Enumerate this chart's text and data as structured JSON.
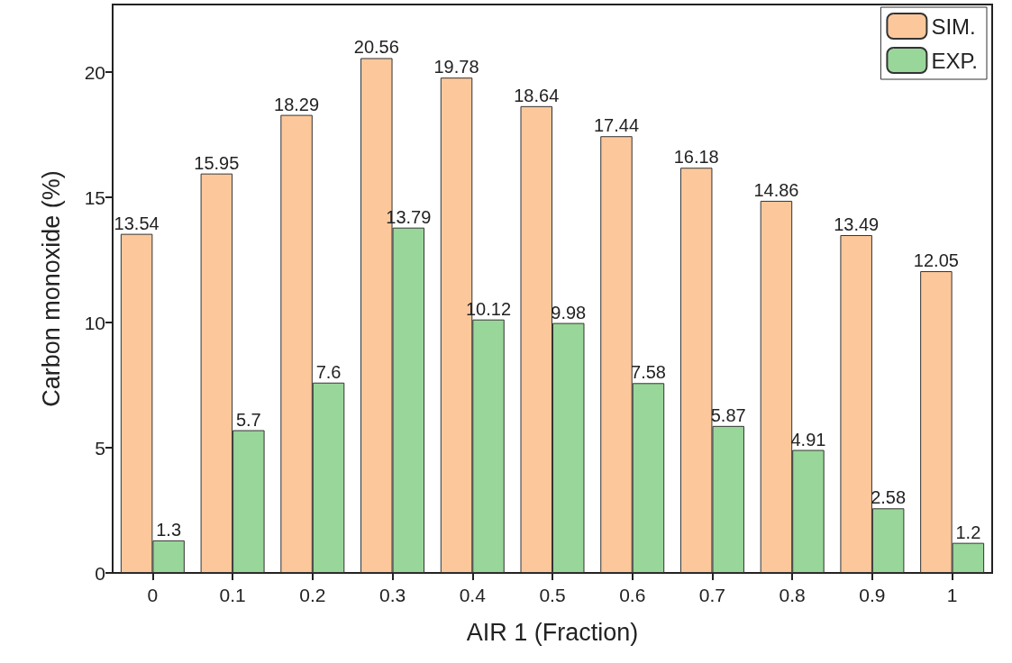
{
  "chart_data": {
    "type": "bar",
    "xlabel": "AIR 1 (Fraction)",
    "ylabel": "Carbon monoxide (%)",
    "categories": [
      "0",
      "0.1",
      "0.2",
      "0.3",
      "0.4",
      "0.5",
      "0.6",
      "0.7",
      "0.8",
      "0.9",
      "1"
    ],
    "series": [
      {
        "name": "SIM.",
        "color": "#fcc89b",
        "values": [
          13.54,
          15.95,
          18.29,
          20.56,
          19.78,
          18.64,
          17.44,
          16.18,
          14.86,
          13.49,
          12.05
        ]
      },
      {
        "name": "EXP.",
        "color": "#99d699",
        "values": [
          1.3,
          5.7,
          7.6,
          13.79,
          10.12,
          9.98,
          7.58,
          5.87,
          4.91,
          2.58,
          1.2
        ]
      }
    ],
    "ylim": [
      0,
      22.7
    ],
    "yticks": [
      0,
      5,
      10,
      15,
      20
    ],
    "data_labels": true,
    "legend": "top right",
    "grid": false
  }
}
